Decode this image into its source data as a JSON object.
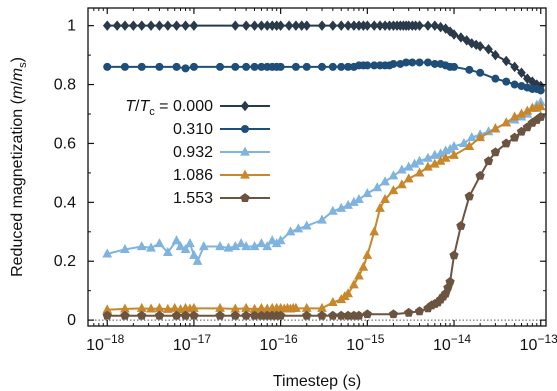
{
  "chart_data": {
    "type": "line",
    "xlabel": "Timestep (s)",
    "ylabel": "Reduced magnetization (m/m_s)",
    "ylabel_parts": {
      "main": "Reduced magnetization (",
      "m": "m",
      "slash": "/",
      "m2": "m",
      "sub": "s",
      "close": ")"
    },
    "xscale": "log",
    "xlim": [
      6e-19,
      1.15e-13
    ],
    "ylim": [
      -0.02,
      1.06
    ],
    "x_ticks": [
      1e-18,
      1e-17,
      1e-16,
      1e-15,
      1e-14,
      1e-13
    ],
    "x_tick_labels": [
      {
        "base": "10",
        "exp": "−18"
      },
      {
        "base": "10",
        "exp": "−17"
      },
      {
        "base": "10",
        "exp": "−16"
      },
      {
        "base": "10",
        "exp": "−15"
      },
      {
        "base": "10",
        "exp": "−14"
      },
      {
        "base": "10",
        "exp": "−13"
      }
    ],
    "y_ticks": [
      0,
      0.2,
      0.4,
      0.6,
      0.8,
      1
    ],
    "y_tick_labels": [
      "0",
      "0.2",
      "0.4",
      "0.6",
      "0.8",
      "1"
    ],
    "reference_line": {
      "y": 0,
      "style": "dotted"
    },
    "grid": false,
    "legend": {
      "placement": "upper-left",
      "title_parts": {
        "T": "T",
        "slash": "/",
        "T2": "T",
        "sub": "c",
        "eq": " = "
      }
    },
    "series": [
      {
        "name": "0.000",
        "color": "#2b3a4a",
        "marker": "diamond",
        "x": [
          1e-18,
          1.3e-18,
          1.6e-18,
          2e-18,
          2.5e-18,
          3.2e-18,
          4e-18,
          5e-18,
          6.3e-18,
          8e-18,
          1e-17,
          3e-17,
          4e-17,
          5e-17,
          6e-17,
          7e-17,
          8e-17,
          9e-17,
          1e-16,
          1.25e-16,
          1.5e-16,
          1.75e-16,
          2e-16,
          3e-16,
          4e-16,
          5e-16,
          6e-16,
          7e-16,
          8e-16,
          9e-16,
          1e-15,
          1.2e-15,
          1.4e-15,
          1.6e-15,
          1.8e-15,
          2e-15,
          2.2e-15,
          2.4e-15,
          2.6e-15,
          2.8e-15,
          3e-15,
          3.3e-15,
          3.6e-15,
          4e-15,
          5e-15,
          6e-15,
          7e-15,
          8e-15,
          9e-15,
          1e-14,
          1.2e-14,
          1.4e-14,
          1.6e-14,
          1.8e-14,
          2e-14,
          2.5e-14,
          3e-14,
          4e-14,
          5e-14,
          6e-14,
          7e-14,
          8e-14,
          9e-14,
          1e-13
        ],
        "y": [
          1,
          1,
          1,
          1,
          1,
          1,
          1,
          1,
          1,
          1,
          1,
          1,
          1,
          1,
          1,
          1,
          1,
          1,
          1,
          1,
          1,
          1,
          1,
          1,
          1,
          1,
          1,
          1,
          1,
          1,
          1,
          1,
          1,
          1,
          1,
          1,
          1,
          1,
          1,
          1,
          1,
          1,
          1,
          1,
          1,
          1,
          0.995,
          0.99,
          0.98,
          0.97,
          0.96,
          0.95,
          0.94,
          0.935,
          0.93,
          0.92,
          0.9,
          0.88,
          0.86,
          0.84,
          0.82,
          0.81,
          0.8,
          0.795
        ]
      },
      {
        "name": "0.310",
        "color": "#1f4e79",
        "marker": "circle",
        "x": [
          1e-18,
          1.6e-18,
          2.5e-18,
          4e-18,
          6.3e-18,
          8e-18,
          1e-17,
          2e-17,
          3e-17,
          4e-17,
          5e-17,
          6e-17,
          7e-17,
          8e-17,
          9e-17,
          1e-16,
          1.5e-16,
          2e-16,
          3e-16,
          4e-16,
          5e-16,
          6e-16,
          7e-16,
          8e-16,
          9e-16,
          1e-15,
          1.2e-15,
          1.4e-15,
          1.6e-15,
          1.8e-15,
          2e-15,
          2.4e-15,
          2.8e-15,
          3.3e-15,
          4e-15,
          5e-15,
          6e-15,
          7e-15,
          8e-15,
          9e-15,
          1e-14,
          1.5e-14,
          2e-14,
          3e-14,
          4e-14,
          5e-14,
          6e-14,
          7e-14,
          8e-14,
          9e-14,
          1e-13
        ],
        "y": [
          0.86,
          0.86,
          0.86,
          0.86,
          0.86,
          0.855,
          0.86,
          0.86,
          0.86,
          0.86,
          0.86,
          0.86,
          0.86,
          0.86,
          0.86,
          0.86,
          0.86,
          0.86,
          0.86,
          0.86,
          0.86,
          0.86,
          0.86,
          0.865,
          0.865,
          0.865,
          0.865,
          0.865,
          0.865,
          0.865,
          0.87,
          0.87,
          0.875,
          0.875,
          0.875,
          0.875,
          0.87,
          0.87,
          0.865,
          0.86,
          0.86,
          0.85,
          0.84,
          0.82,
          0.81,
          0.8,
          0.795,
          0.79,
          0.785,
          0.785,
          0.78
        ]
      },
      {
        "name": "0.932",
        "color": "#7fb3e0",
        "marker": "triangle",
        "x": [
          1e-18,
          1.6e-18,
          2.5e-18,
          3.2e-18,
          4e-18,
          5e-18,
          6.3e-18,
          7e-18,
          8e-18,
          9e-18,
          1e-17,
          1.1e-17,
          1.3e-17,
          2e-17,
          2.5e-17,
          3e-17,
          3.5e-17,
          4e-17,
          5e-17,
          6e-17,
          7e-17,
          8e-17,
          9e-17,
          1e-16,
          1.3e-16,
          1.6e-16,
          2e-16,
          3e-16,
          4e-16,
          5e-16,
          6e-16,
          7e-16,
          8e-16,
          1e-15,
          1.3e-15,
          1.6e-15,
          2e-15,
          2.5e-15,
          3e-15,
          3.5e-15,
          4e-15,
          5e-15,
          6e-15,
          7e-15,
          8e-15,
          9e-15,
          1e-14,
          1.3e-14,
          1.6e-14,
          2e-14,
          2.5e-14,
          3e-14,
          4e-14,
          5e-14,
          6e-14,
          7e-14,
          8e-14,
          9e-14,
          1e-13
        ],
        "y": [
          0.225,
          0.24,
          0.25,
          0.245,
          0.26,
          0.23,
          0.27,
          0.25,
          0.24,
          0.26,
          0.22,
          0.2,
          0.25,
          0.25,
          0.245,
          0.25,
          0.26,
          0.25,
          0.25,
          0.26,
          0.25,
          0.27,
          0.26,
          0.27,
          0.3,
          0.31,
          0.32,
          0.34,
          0.37,
          0.38,
          0.39,
          0.4,
          0.41,
          0.43,
          0.45,
          0.47,
          0.49,
          0.51,
          0.52,
          0.53,
          0.54,
          0.55,
          0.56,
          0.565,
          0.575,
          0.58,
          0.59,
          0.6,
          0.62,
          0.63,
          0.64,
          0.65,
          0.67,
          0.68,
          0.69,
          0.7,
          0.72,
          0.73,
          0.74
        ]
      },
      {
        "name": "1.086",
        "color": "#c8872a",
        "marker": "triangle",
        "x": [
          1e-18,
          1.6e-18,
          2.5e-18,
          3.2e-18,
          4e-18,
          5e-18,
          6e-18,
          7e-18,
          8e-18,
          9e-18,
          1e-17,
          2e-17,
          3e-17,
          4e-17,
          5e-17,
          6e-17,
          7e-17,
          8e-17,
          9e-17,
          1e-16,
          1.1e-16,
          1.2e-16,
          1.3e-16,
          1.4e-16,
          1.5e-16,
          2e-16,
          3e-16,
          4e-16,
          5e-16,
          5.5e-16,
          6e-16,
          7e-16,
          8e-16,
          9e-16,
          1e-15,
          1.2e-15,
          1.4e-15,
          1.6e-15,
          2e-15,
          2.5e-15,
          3e-15,
          4e-15,
          5e-15,
          6e-15,
          7e-15,
          8e-15,
          1e-14,
          1.5e-14,
          2e-14,
          3e-14,
          4e-14,
          5e-14,
          6e-14,
          7e-14,
          8e-14,
          9e-14,
          1e-13
        ],
        "y": [
          0.035,
          0.038,
          0.04,
          0.038,
          0.04,
          0.037,
          0.04,
          0.036,
          0.04,
          0.038,
          0.04,
          0.04,
          0.038,
          0.04,
          0.037,
          0.04,
          0.038,
          0.04,
          0.04,
          0.04,
          0.038,
          0.04,
          0.038,
          0.04,
          0.04,
          0.04,
          0.04,
          0.06,
          0.07,
          0.08,
          0.09,
          0.12,
          0.15,
          0.18,
          0.22,
          0.3,
          0.38,
          0.41,
          0.44,
          0.46,
          0.48,
          0.5,
          0.52,
          0.53,
          0.54,
          0.55,
          0.56,
          0.59,
          0.62,
          0.65,
          0.67,
          0.69,
          0.7,
          0.71,
          0.72,
          0.72,
          0.725
        ]
      },
      {
        "name": "1.553",
        "color": "#6b5440",
        "marker": "pentagon",
        "x": [
          1e-18,
          1.6e-18,
          2.5e-18,
          4e-18,
          6.3e-18,
          8e-18,
          1e-17,
          2e-17,
          3e-17,
          4e-17,
          5e-17,
          6e-17,
          7e-17,
          8e-17,
          9e-17,
          1e-16,
          2e-16,
          3e-16,
          4e-16,
          5e-16,
          6e-16,
          7e-16,
          8e-16,
          1e-15,
          2e-15,
          3e-15,
          4e-15,
          5e-15,
          5.5e-15,
          6e-15,
          6.5e-15,
          7e-15,
          7.5e-15,
          8e-15,
          8.5e-15,
          9e-15,
          1e-14,
          1.2e-14,
          1.5e-14,
          2e-14,
          2.5e-14,
          3e-14,
          4e-14,
          5e-14,
          6e-14,
          7e-14,
          8e-14,
          9e-14,
          1e-13
        ],
        "y": [
          0.015,
          0.015,
          0.015,
          0.015,
          0.015,
          0.015,
          0.015,
          0.015,
          0.015,
          0.015,
          0.015,
          0.015,
          0.015,
          0.015,
          0.015,
          0.015,
          0.015,
          0.015,
          0.015,
          0.015,
          0.015,
          0.015,
          0.015,
          0.02,
          0.02,
          0.025,
          0.03,
          0.04,
          0.05,
          0.055,
          0.06,
          0.07,
          0.08,
          0.09,
          0.11,
          0.13,
          0.22,
          0.32,
          0.42,
          0.49,
          0.54,
          0.57,
          0.6,
          0.62,
          0.64,
          0.655,
          0.67,
          0.68,
          0.69
        ]
      }
    ]
  }
}
